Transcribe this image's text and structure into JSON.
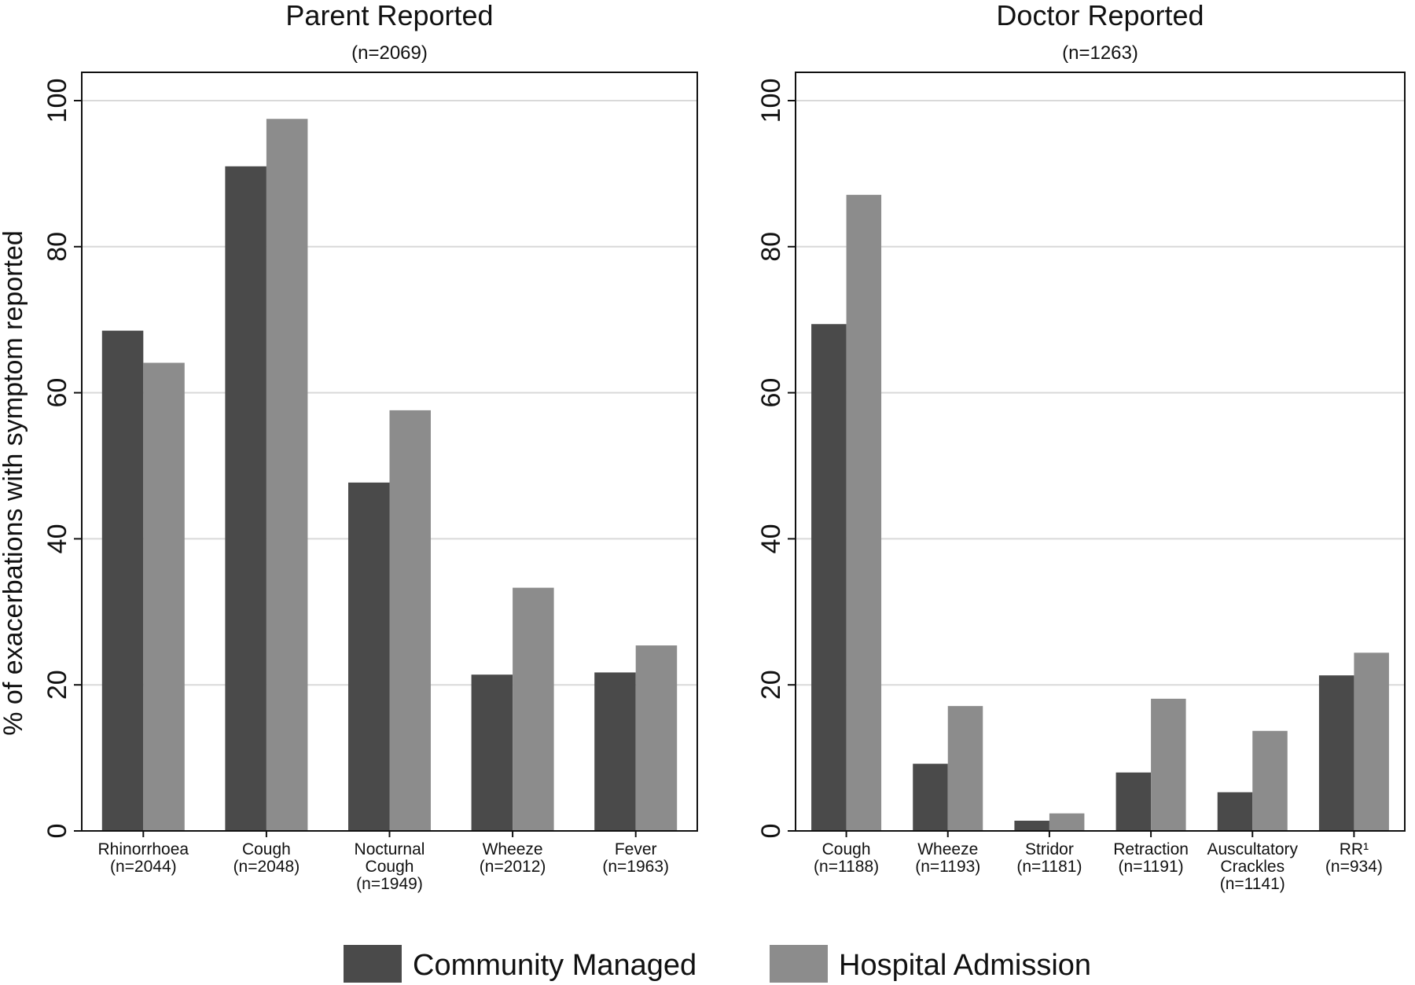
{
  "chart_data": [
    {
      "type": "bar",
      "title": "Parent Reported",
      "subtitle": "(n=2069)",
      "ylabel": "% of exacerbations with symptom reported",
      "ylim": [
        0,
        100
      ],
      "yticks": [
        0,
        20,
        40,
        60,
        80,
        100
      ],
      "grid": true,
      "categories": [
        [
          "Rhinorrhoea",
          "(n=2044)"
        ],
        [
          "Cough",
          "(n=2048)"
        ],
        [
          "Nocturnal",
          "Cough",
          "(n=1949)"
        ],
        [
          "Wheeze",
          "(n=2012)"
        ],
        [
          "Fever",
          "(n=1963)"
        ]
      ],
      "series": [
        {
          "name": "Community Managed",
          "color": "#4a4a4a",
          "values": [
            68.5,
            91.0,
            47.7,
            21.4,
            21.7
          ]
        },
        {
          "name": "Hospital Admission",
          "color": "#8c8c8c",
          "values": [
            64.1,
            97.5,
            57.6,
            33.3,
            25.4
          ]
        }
      ]
    },
    {
      "type": "bar",
      "title": "Doctor Reported",
      "subtitle": "(n=1263)",
      "ylabel": "",
      "ylim": [
        0,
        100
      ],
      "yticks": [
        0,
        20,
        40,
        60,
        80,
        100
      ],
      "grid": true,
      "categories": [
        [
          "Cough",
          "(n=1188)"
        ],
        [
          "Wheeze",
          "(n=1193)"
        ],
        [
          "Stridor",
          "(n=1181)"
        ],
        [
          "Retraction",
          "(n=1191)"
        ],
        [
          "Auscultatory",
          "Crackles",
          "(n=1141)"
        ],
        [
          "RR¹",
          "(n=934)"
        ]
      ],
      "series": [
        {
          "name": "Community Managed",
          "color": "#4a4a4a",
          "values": [
            69.4,
            9.2,
            1.4,
            8.0,
            5.3,
            21.3
          ]
        },
        {
          "name": "Hospital Admission",
          "color": "#8c8c8c",
          "values": [
            87.1,
            17.1,
            2.4,
            18.1,
            13.7,
            24.4
          ]
        }
      ]
    }
  ],
  "legend": {
    "placement": "bottom",
    "items": [
      {
        "label": "Community Managed",
        "color": "#4a4a4a"
      },
      {
        "label": "Hospital Admission",
        "color": "#8c8c8c"
      }
    ]
  }
}
